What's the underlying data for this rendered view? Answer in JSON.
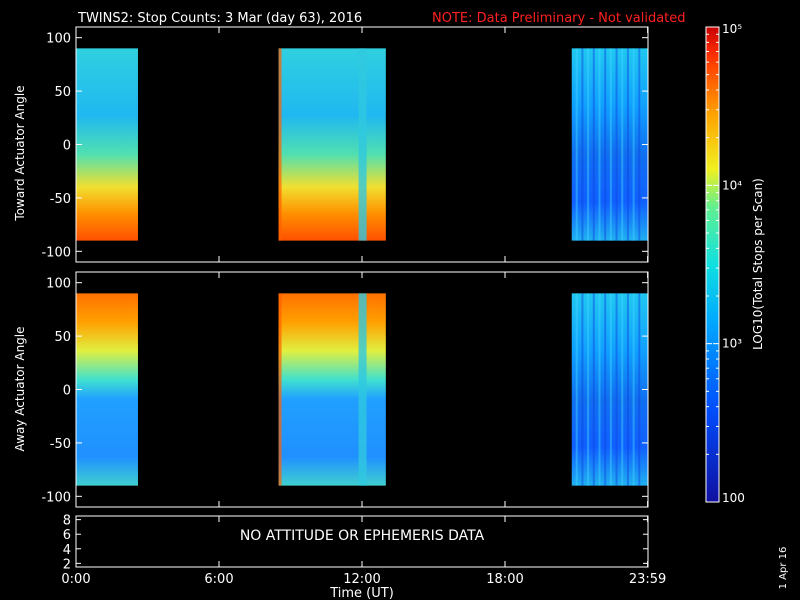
{
  "title": {
    "main": "TWINS2: Stop Counts:  3 Mar (day  63), 2016",
    "note": "NOTE: Data Preliminary - Not validated",
    "note_color": "#ff2020"
  },
  "date_stamp": "1 Apr 16",
  "chart_data": [
    {
      "type": "heatmap",
      "panel": "toward",
      "ylabel": "Toward Actuator Angle",
      "ylim": [
        -110,
        110
      ],
      "yticks": [
        100,
        50,
        0,
        -50,
        -100
      ],
      "data_blocks_hours": [
        [
          0.0,
          2.6
        ],
        [
          8.5,
          13.0
        ],
        [
          20.8,
          24.0
        ]
      ]
    },
    {
      "type": "heatmap",
      "panel": "away",
      "ylabel": "Away Actuator Angle",
      "ylim": [
        -110,
        110
      ],
      "yticks": [
        100,
        50,
        0,
        -50,
        -100
      ],
      "data_blocks_hours": [
        [
          0.0,
          2.6
        ],
        [
          8.5,
          13.0
        ],
        [
          20.8,
          24.0
        ]
      ]
    },
    {
      "type": "line",
      "panel": "attitude",
      "message": "NO ATTITUDE OR EPHEMERIS DATA",
      "yticks": [
        8,
        6,
        4,
        2
      ],
      "ylim": [
        1.5,
        8.5
      ]
    }
  ],
  "xaxis": {
    "label": "Time (UT)",
    "ticks": [
      {
        "hour": 0,
        "label": "0:00"
      },
      {
        "hour": 6,
        "label": "6:00"
      },
      {
        "hour": 12,
        "label": "12:00"
      },
      {
        "hour": 18,
        "label": "18:00"
      },
      {
        "hour": 23.983,
        "label": "23:59"
      }
    ],
    "range_hours": [
      0,
      24
    ]
  },
  "colorbar": {
    "label": "LOG10(Total Stops per Scan)",
    "min": 100,
    "max": 100000,
    "ticks": [
      {
        "value": 100,
        "label": "100"
      },
      {
        "value": 1000,
        "label": "10³"
      },
      {
        "value": 10000,
        "label": "10⁴"
      },
      {
        "value": 100000,
        "label": "10⁵"
      }
    ]
  }
}
